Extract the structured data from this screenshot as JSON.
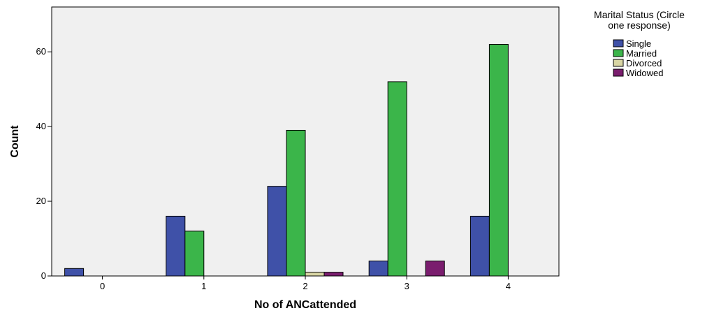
{
  "chart_data": {
    "type": "bar",
    "xlabel": "No of ANCattended",
    "ylabel": "Count",
    "categories": [
      "0",
      "1",
      "2",
      "3",
      "4"
    ],
    "ylim": [
      0,
      72
    ],
    "yticks": [
      0,
      20,
      40,
      60
    ],
    "grid": false,
    "legend_position": "top-right",
    "legend_title": "Marital Status (Circle one response)",
    "legend_title_lines": [
      "Marital Status (Circle",
      "one response)"
    ],
    "series": [
      {
        "name": "Single",
        "color": "#3f51a8",
        "values": [
          2,
          16,
          24,
          4,
          16
        ]
      },
      {
        "name": "Married",
        "color": "#3bb54a",
        "values": [
          null,
          12,
          39,
          52,
          62
        ]
      },
      {
        "name": "Divorced",
        "color": "#d9d6a4",
        "values": [
          null,
          null,
          1,
          null,
          null
        ]
      },
      {
        "name": "Widowed",
        "color": "#7a1d6e",
        "values": [
          null,
          null,
          1,
          4,
          null
        ]
      }
    ],
    "plot_background": "#f0f0f0"
  }
}
